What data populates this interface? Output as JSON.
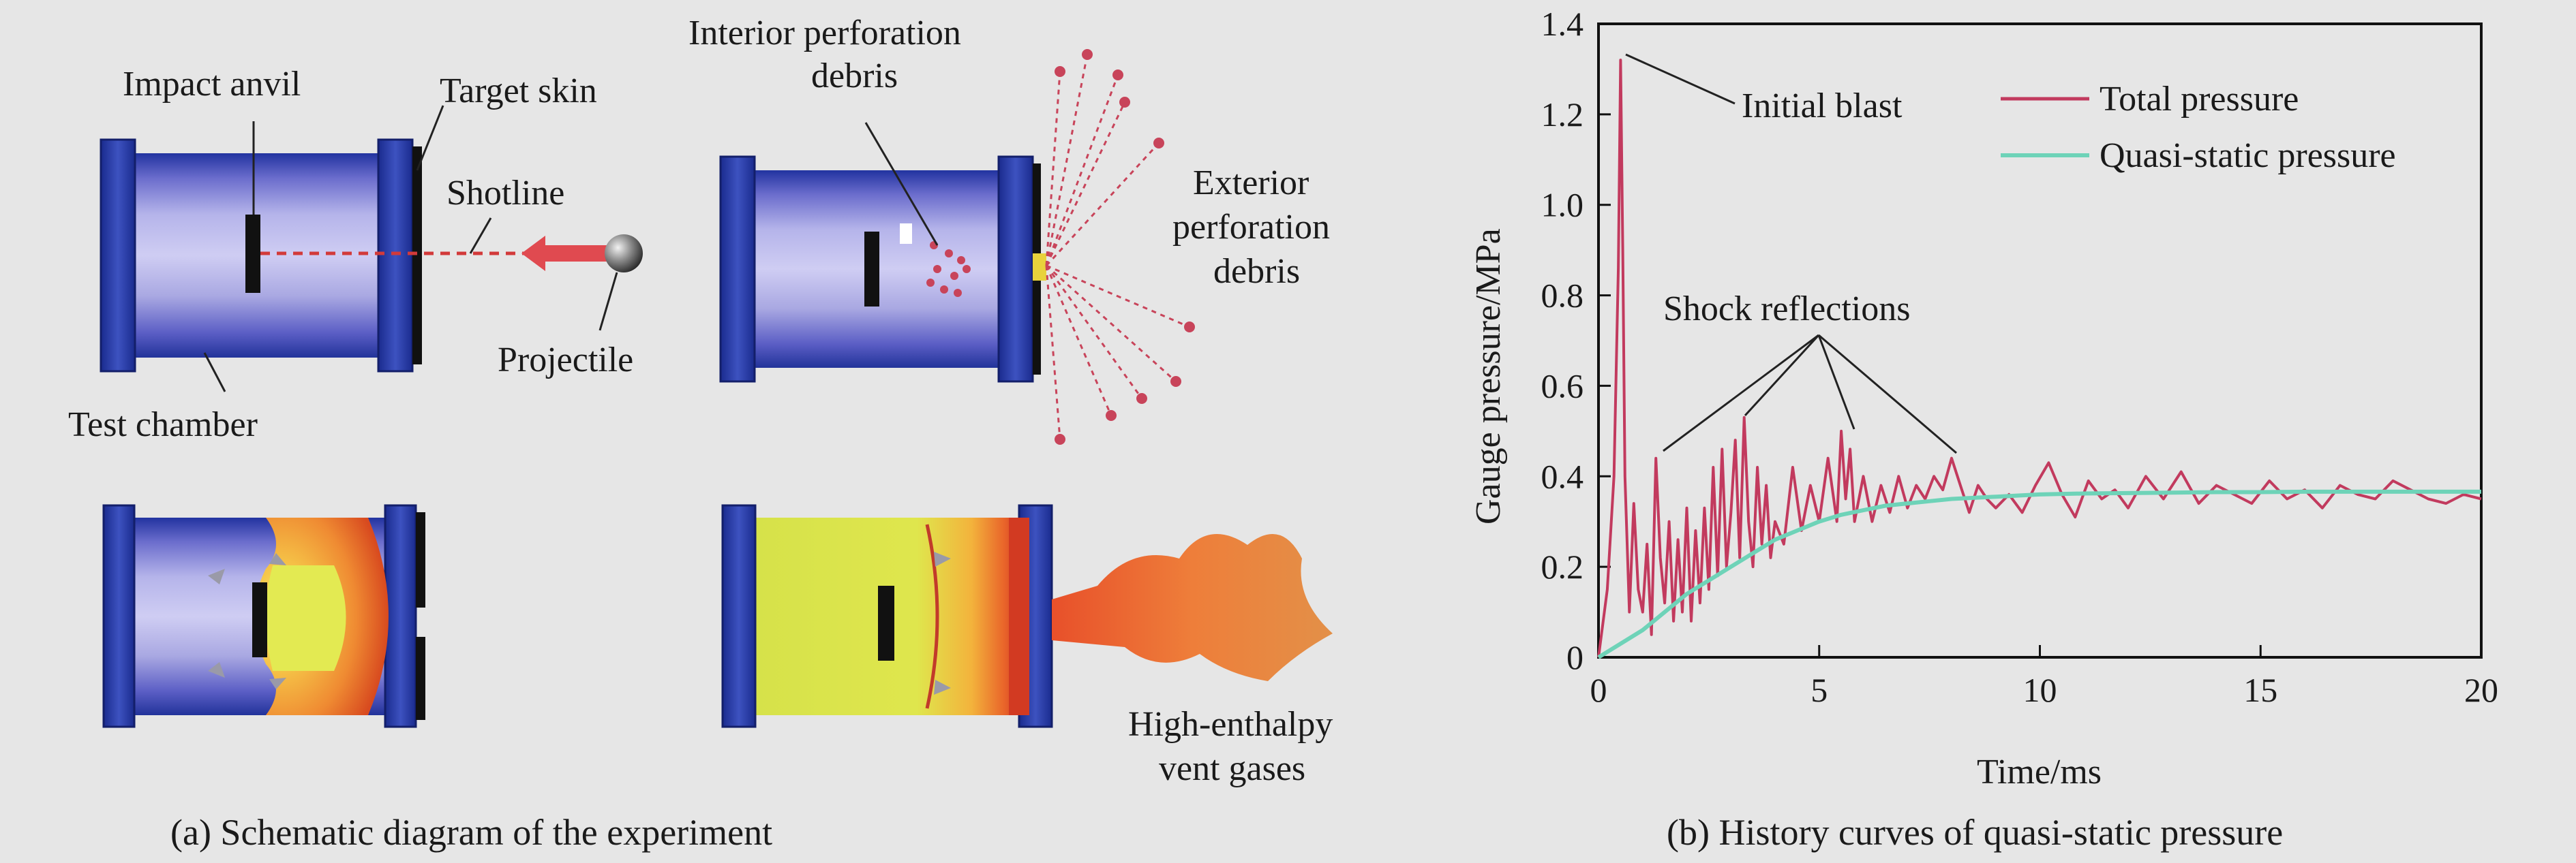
{
  "colors": {
    "background": "#e6e6e6",
    "chamber_blue": "#2a3fa8",
    "chamber_lavender": "#a7a6e2",
    "fireball_orange": "#ee7a2e",
    "fireball_yellow": "#dbe64a",
    "total_pressure": "#c23a5e",
    "quasi_static": "#6ed3b8"
  },
  "schematic": {
    "caption": "(a) Schematic diagram of the experiment",
    "labels": {
      "impact_anvil": "Impact anvil",
      "target_skin": "Target skin",
      "shotline": "Shotline",
      "projectile": "Projectile",
      "test_chamber": "Test chamber",
      "interior_debris_line1": "Interior perforation",
      "interior_debris_line2": "debris",
      "exterior_debris_line1": "Exterior",
      "exterior_debris_line2": "perforation",
      "exterior_debris_line3": "debris",
      "vent_gases_line1": "High-enthalpy",
      "vent_gases_line2": "vent gases"
    }
  },
  "chart_data": {
    "type": "line",
    "caption": "(b) History curves of quasi-static pressure",
    "xlabel": "Time/ms",
    "ylabel": "Gauge pressure/MPa",
    "xlim": [
      0,
      20
    ],
    "ylim": [
      0,
      1.4
    ],
    "xticks": [
      0,
      5,
      10,
      15,
      20
    ],
    "yticks": [
      0,
      0.2,
      0.4,
      0.6,
      0.8,
      1.0,
      1.2,
      1.4
    ],
    "ytick_labels": [
      "0",
      "0.2",
      "0.4",
      "0.6",
      "0.8",
      "1.0",
      "1.2",
      "1.4"
    ],
    "grid": false,
    "legend_position": "top-right",
    "annotations": {
      "initial_blast": "Initial blast",
      "shock_reflections": "Shock reflections"
    },
    "series": [
      {
        "name": "Total pressure",
        "color": "#c23a5e",
        "x": [
          0,
          0.2,
          0.35,
          0.45,
          0.5,
          0.55,
          0.6,
          0.7,
          0.8,
          0.9,
          1.0,
          1.1,
          1.2,
          1.3,
          1.4,
          1.5,
          1.6,
          1.7,
          1.8,
          1.9,
          2.0,
          2.1,
          2.2,
          2.3,
          2.4,
          2.5,
          2.6,
          2.7,
          2.8,
          2.9,
          3.0,
          3.1,
          3.2,
          3.3,
          3.4,
          3.5,
          3.6,
          3.7,
          3.8,
          3.9,
          4.0,
          4.2,
          4.4,
          4.6,
          4.8,
          5.0,
          5.2,
          5.4,
          5.5,
          5.6,
          5.7,
          5.8,
          6.0,
          6.2,
          6.4,
          6.6,
          6.8,
          7.0,
          7.2,
          7.4,
          7.6,
          7.8,
          8.0,
          8.2,
          8.4,
          8.6,
          8.8,
          9.0,
          9.3,
          9.6,
          9.9,
          10.2,
          10.5,
          10.8,
          11.1,
          11.4,
          11.7,
          12.0,
          12.4,
          12.8,
          13.2,
          13.6,
          14.0,
          14.4,
          14.8,
          15.2,
          15.6,
          16.0,
          16.4,
          16.8,
          17.2,
          17.6,
          18.0,
          18.4,
          18.8,
          19.2,
          19.6,
          20.0
        ],
        "y": [
          0,
          0.15,
          0.4,
          0.86,
          1.32,
          0.9,
          0.4,
          0.1,
          0.34,
          0.15,
          0.1,
          0.25,
          0.05,
          0.44,
          0.22,
          0.12,
          0.3,
          0.08,
          0.26,
          0.1,
          0.33,
          0.08,
          0.28,
          0.12,
          0.33,
          0.15,
          0.42,
          0.18,
          0.46,
          0.2,
          0.32,
          0.48,
          0.22,
          0.53,
          0.3,
          0.2,
          0.42,
          0.25,
          0.38,
          0.22,
          0.3,
          0.25,
          0.42,
          0.28,
          0.38,
          0.3,
          0.44,
          0.3,
          0.5,
          0.35,
          0.46,
          0.3,
          0.4,
          0.3,
          0.38,
          0.32,
          0.4,
          0.33,
          0.38,
          0.35,
          0.4,
          0.37,
          0.44,
          0.38,
          0.32,
          0.38,
          0.35,
          0.33,
          0.36,
          0.32,
          0.38,
          0.43,
          0.36,
          0.31,
          0.39,
          0.35,
          0.37,
          0.33,
          0.4,
          0.35,
          0.41,
          0.34,
          0.38,
          0.36,
          0.34,
          0.39,
          0.35,
          0.37,
          0.33,
          0.38,
          0.36,
          0.35,
          0.39,
          0.37,
          0.35,
          0.34,
          0.36,
          0.35
        ]
      },
      {
        "name": "Quasi-static pressure",
        "color": "#6ed3b8",
        "x": [
          0,
          0.5,
          1,
          1.5,
          2,
          2.5,
          3,
          3.5,
          4,
          4.5,
          5,
          5.5,
          6,
          6.5,
          7,
          7.5,
          8,
          9,
          10,
          11,
          12,
          13,
          14,
          15,
          16,
          17,
          18,
          19,
          20
        ],
        "y": [
          0,
          0.03,
          0.06,
          0.1,
          0.14,
          0.17,
          0.2,
          0.23,
          0.26,
          0.28,
          0.3,
          0.315,
          0.325,
          0.335,
          0.34,
          0.345,
          0.35,
          0.355,
          0.36,
          0.362,
          0.363,
          0.364,
          0.365,
          0.365,
          0.366,
          0.366,
          0.366,
          0.366,
          0.366
        ]
      }
    ]
  }
}
